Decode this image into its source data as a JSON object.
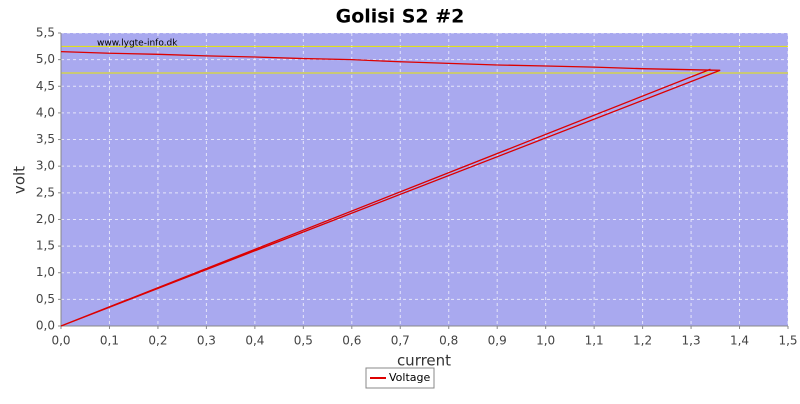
{
  "chart_data": {
    "type": "line",
    "title": "Golisi S2 #2",
    "xlabel": "current",
    "ylabel": "volt",
    "watermark": "www.lygte-info.dk",
    "x": [
      0.0,
      0.1,
      0.2,
      0.3,
      0.4,
      0.5,
      0.6,
      0.7,
      0.8,
      0.9,
      1.0,
      1.1,
      1.2,
      1.36,
      0.0,
      1.34
    ],
    "series": [
      {
        "name": "Voltage",
        "color": "#dd0000",
        "values": [
          5.15,
          5.12,
          5.1,
          5.07,
          5.05,
          5.02,
          5.0,
          4.96,
          4.93,
          4.9,
          4.88,
          4.86,
          4.83,
          4.8,
          0.0,
          4.82
        ]
      }
    ],
    "reference_lines": [
      5.25,
      4.75
    ],
    "reference_color": "#e8e800",
    "xlim": [
      0,
      1.5
    ],
    "ylim": [
      0,
      5.5
    ],
    "xticks": [
      {
        "value": 0,
        "label": "0,0"
      },
      {
        "value": 0.1,
        "label": "0,1"
      },
      {
        "value": 0.2,
        "label": "0,2"
      },
      {
        "value": 0.3,
        "label": "0,3"
      },
      {
        "value": 0.4,
        "label": "0,4"
      },
      {
        "value": 0.5,
        "label": "0,5"
      },
      {
        "value": 0.6,
        "label": "0,6"
      },
      {
        "value": 0.7,
        "label": "0,7"
      },
      {
        "value": 0.8,
        "label": "0,8"
      },
      {
        "value": 0.9,
        "label": "0,9"
      },
      {
        "value": 1.0,
        "label": "1,0"
      },
      {
        "value": 1.1,
        "label": "1,1"
      },
      {
        "value": 1.2,
        "label": "1,2"
      },
      {
        "value": 1.3,
        "label": "1,3"
      },
      {
        "value": 1.4,
        "label": "1,4"
      },
      {
        "value": 1.5,
        "label": "1,5"
      }
    ],
    "yticks": [
      {
        "value": 0,
        "label": "0,0"
      },
      {
        "value": 0.5,
        "label": "0,5"
      },
      {
        "value": 1.0,
        "label": "1,0"
      },
      {
        "value": 1.5,
        "label": "1,5"
      },
      {
        "value": 2.0,
        "label": "2,0"
      },
      {
        "value": 2.5,
        "label": "2,5"
      },
      {
        "value": 3.0,
        "label": "3,0"
      },
      {
        "value": 3.5,
        "label": "3,5"
      },
      {
        "value": 4.0,
        "label": "4,0"
      },
      {
        "value": 4.5,
        "label": "4,5"
      },
      {
        "value": 5.0,
        "label": "5,0"
      },
      {
        "value": 5.5,
        "label": "5,5"
      }
    ],
    "grid": true,
    "background": "#a9a9ef",
    "legend": "bottom"
  }
}
